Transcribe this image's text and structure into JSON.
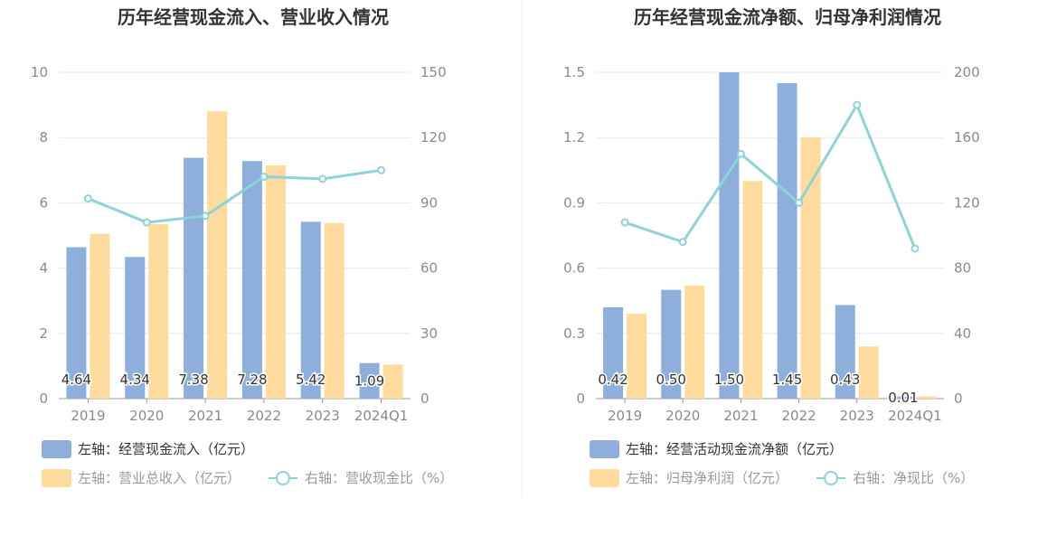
{
  "chart_data": [
    {
      "type": "bar",
      "title": "历年经营现金流入、营业收入情况",
      "categories": [
        "2019",
        "2020",
        "2021",
        "2022",
        "2023",
        "2024Q1"
      ],
      "y_left": {
        "ticks": [
          "0",
          "2",
          "4",
          "6",
          "8",
          "10"
        ],
        "ylim": [
          0,
          10
        ]
      },
      "y_right": {
        "ticks": [
          "0",
          "30",
          "60",
          "90",
          "120",
          "150"
        ],
        "ylim": [
          0,
          150
        ]
      },
      "series": [
        {
          "name": "左轴：经营现金流入（亿元）",
          "kind": "bar",
          "axis": "left",
          "color": "#8eaedb",
          "values": [
            4.64,
            4.34,
            7.38,
            7.28,
            5.42,
            1.09
          ],
          "labels": [
            "4.64",
            "4.34",
            "7.38",
            "7.28",
            "5.42",
            "1.09"
          ]
        },
        {
          "name": "左轴：营业总收入（亿元）",
          "kind": "bar",
          "axis": "left",
          "color": "#ffdb9e",
          "values": [
            5.05,
            5.35,
            8.8,
            7.15,
            5.38,
            1.04
          ]
        },
        {
          "name": "右轴：营收现金比（%）",
          "kind": "line",
          "axis": "right",
          "color": "#8dd3d8",
          "values": [
            92,
            81,
            84,
            102,
            101,
            105
          ]
        }
      ]
    },
    {
      "type": "bar",
      "title": "历年经营现金流净额、归母净利润情况",
      "categories": [
        "2019",
        "2020",
        "2021",
        "2022",
        "2023",
        "2024Q1"
      ],
      "y_left": {
        "ticks": [
          "0",
          "0.3",
          "0.6",
          "0.9",
          "1.2",
          "1.5"
        ],
        "ylim": [
          0,
          1.5
        ]
      },
      "y_right": {
        "ticks": [
          "0",
          "40",
          "80",
          "120",
          "160",
          "200"
        ],
        "ylim": [
          0,
          200
        ]
      },
      "series": [
        {
          "name": "左轴：经营活动现金流净额（亿元）",
          "kind": "bar",
          "axis": "left",
          "color": "#8eaedb",
          "values": [
            0.42,
            0.5,
            1.5,
            1.45,
            0.43,
            0.01
          ],
          "labels": [
            "0.42",
            "0.50",
            "1.50",
            "1.45",
            "0.43",
            "0.01"
          ]
        },
        {
          "name": "左轴：归母净利润（亿元）",
          "kind": "bar",
          "axis": "left",
          "color": "#ffdb9e",
          "values": [
            0.39,
            0.52,
            1.0,
            1.2,
            0.24,
            0.01
          ]
        },
        {
          "name": "右轴：净现比（%）",
          "kind": "line",
          "axis": "right",
          "color": "#8dd3d8",
          "values": [
            108,
            96,
            150,
            120,
            180,
            92
          ]
        }
      ]
    }
  ]
}
